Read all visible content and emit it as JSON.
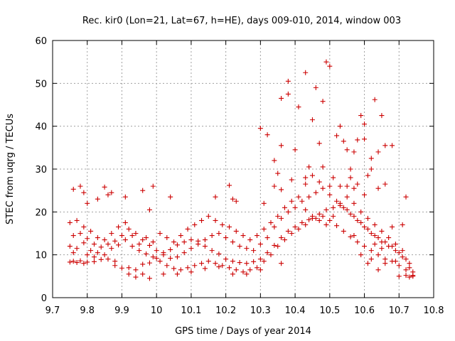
{
  "chart_data": {
    "type": "scatter",
    "title": "Rec. kir0 (Lon=21, Lat=67, h=HE), days 009-010, 2014, window 003",
    "xlabel": "GPS time / Days of year 2014",
    "ylabel": "STEC from uqrg / TECUs",
    "xlim": [
      9.7,
      10.8
    ],
    "ylim": [
      0,
      60
    ],
    "x_ticks": [
      "9.7",
      "9.8",
      "9.9",
      "10",
      "10.1",
      "10.2",
      "10.3",
      "10.4",
      "10.5",
      "10.6",
      "10.7",
      "10.8"
    ],
    "y_ticks": [
      "0",
      "10",
      "20",
      "30",
      "40",
      "50",
      "60"
    ],
    "grid": true,
    "marker": "+",
    "color": "#cc0000",
    "series": [
      {
        "name": "",
        "points": [
          [
            9.75,
            8.3
          ],
          [
            9.76,
            8.5
          ],
          [
            9.77,
            8.2
          ],
          [
            9.78,
            8.6
          ],
          [
            9.79,
            8.0
          ],
          [
            9.8,
            8.3
          ],
          [
            9.82,
            8.4
          ],
          [
            9.84,
            8.9
          ],
          [
            9.86,
            9.0
          ],
          [
            9.88,
            7.5
          ],
          [
            9.9,
            6.9
          ],
          [
            9.92,
            7.0
          ],
          [
            9.94,
            6.5
          ],
          [
            9.96,
            7.8
          ],
          [
            9.98,
            8.1
          ],
          [
            10.0,
            9.2
          ],
          [
            10.02,
            10.5
          ],
          [
            10.04,
            11.2
          ],
          [
            10.06,
            12.3
          ],
          [
            10.08,
            13.0
          ],
          [
            10.1,
            13.5
          ],
          [
            10.12,
            13.2
          ],
          [
            10.14,
            12.0
          ],
          [
            10.16,
            11.0
          ],
          [
            10.18,
            10.2
          ],
          [
            10.2,
            9.0
          ],
          [
            10.22,
            8.5
          ],
          [
            10.24,
            8.2
          ],
          [
            10.26,
            8.0
          ],
          [
            10.28,
            8.4
          ],
          [
            10.3,
            9.0
          ],
          [
            10.32,
            10.5
          ],
          [
            10.34,
            12.2
          ],
          [
            10.36,
            14.0
          ],
          [
            10.38,
            15.5
          ],
          [
            10.4,
            16.5
          ],
          [
            10.42,
            17.5
          ],
          [
            10.44,
            18.2
          ],
          [
            10.46,
            18.5
          ],
          [
            10.48,
            19.0
          ],
          [
            10.5,
            18.0
          ],
          [
            10.52,
            16.8
          ],
          [
            10.54,
            15.5
          ],
          [
            10.56,
            14.2
          ],
          [
            10.58,
            13.0
          ],
          [
            10.6,
            12.0
          ],
          [
            10.62,
            11.0
          ],
          [
            10.64,
            10.0
          ],
          [
            10.66,
            9.0
          ],
          [
            10.68,
            8.5
          ],
          [
            10.7,
            7.5
          ],
          [
            10.72,
            6.5
          ],
          [
            10.74,
            5.0
          ],
          [
            9.75,
            12.0
          ],
          [
            9.77,
            11.5
          ],
          [
            9.79,
            12.8
          ],
          [
            9.81,
            11.0
          ],
          [
            9.83,
            10.5
          ],
          [
            9.85,
            10.0
          ],
          [
            9.87,
            11.5
          ],
          [
            9.89,
            12.3
          ],
          [
            9.91,
            13.5
          ],
          [
            9.93,
            12.0
          ],
          [
            9.95,
            11.0
          ],
          [
            9.97,
            10.2
          ],
          [
            9.99,
            9.5
          ],
          [
            10.01,
            8.5
          ],
          [
            10.03,
            7.5
          ],
          [
            10.05,
            6.8
          ],
          [
            10.07,
            6.5
          ],
          [
            10.09,
            7.0
          ],
          [
            10.11,
            7.5
          ],
          [
            10.13,
            8.0
          ],
          [
            10.15,
            8.5
          ],
          [
            10.17,
            8.0
          ],
          [
            10.19,
            7.5
          ],
          [
            10.21,
            7.0
          ],
          [
            10.23,
            6.5
          ],
          [
            10.25,
            6.0
          ],
          [
            10.27,
            6.5
          ],
          [
            10.29,
            7.0
          ],
          [
            10.31,
            8.5
          ],
          [
            10.33,
            10.0
          ],
          [
            10.35,
            12.0
          ],
          [
            10.37,
            13.5
          ],
          [
            10.39,
            15.0
          ],
          [
            10.41,
            16.0
          ],
          [
            10.43,
            17.0
          ],
          [
            10.45,
            18.5
          ],
          [
            10.47,
            19.5
          ],
          [
            10.49,
            20.5
          ],
          [
            10.51,
            21.0
          ],
          [
            10.53,
            21.5
          ],
          [
            10.55,
            20.5
          ],
          [
            10.57,
            19.0
          ],
          [
            10.59,
            17.5
          ],
          [
            10.61,
            16.0
          ],
          [
            10.63,
            14.5
          ],
          [
            10.65,
            13.0
          ],
          [
            10.67,
            12.0
          ],
          [
            10.69,
            11.0
          ],
          [
            10.71,
            9.5
          ],
          [
            10.73,
            7.0
          ],
          [
            9.76,
            14.5
          ],
          [
            9.78,
            15.0
          ],
          [
            9.8,
            13.8
          ],
          [
            9.82,
            12.5
          ],
          [
            9.84,
            11.8
          ],
          [
            9.86,
            12.5
          ],
          [
            9.88,
            13.2
          ],
          [
            9.9,
            14.5
          ],
          [
            9.92,
            16.0
          ],
          [
            9.94,
            15.0
          ],
          [
            9.96,
            13.5
          ],
          [
            9.98,
            12.2
          ],
          [
            10.0,
            11.0
          ],
          [
            10.02,
            10.0
          ],
          [
            10.04,
            9.2
          ],
          [
            10.06,
            9.5
          ],
          [
            10.08,
            10.5
          ],
          [
            10.1,
            11.5
          ],
          [
            10.12,
            12.5
          ],
          [
            10.14,
            13.5
          ],
          [
            10.16,
            14.5
          ],
          [
            10.18,
            15.0
          ],
          [
            10.2,
            14.0
          ],
          [
            10.22,
            13.0
          ],
          [
            10.24,
            12.0
          ],
          [
            10.26,
            11.5
          ],
          [
            10.28,
            11.0
          ],
          [
            10.3,
            12.5
          ],
          [
            10.32,
            14.0
          ],
          [
            10.34,
            16.5
          ],
          [
            10.36,
            18.5
          ],
          [
            10.38,
            20.0
          ],
          [
            10.4,
            21.0
          ],
          [
            10.42,
            22.5
          ],
          [
            10.44,
            23.5
          ],
          [
            10.46,
            24.5
          ],
          [
            10.48,
            25.5
          ],
          [
            10.5,
            24.0
          ],
          [
            10.52,
            22.5
          ],
          [
            10.54,
            21.0
          ],
          [
            10.56,
            19.5
          ],
          [
            10.58,
            18.0
          ],
          [
            10.6,
            16.5
          ],
          [
            10.62,
            15.0
          ],
          [
            10.64,
            14.0
          ],
          [
            10.66,
            13.0
          ],
          [
            10.68,
            12.0
          ],
          [
            10.7,
            10.5
          ],
          [
            10.72,
            9.0
          ],
          [
            10.74,
            6.0
          ],
          [
            9.75,
            17.5
          ],
          [
            9.77,
            18.0
          ],
          [
            9.79,
            16.5
          ],
          [
            9.81,
            15.5
          ],
          [
            9.83,
            14.0
          ],
          [
            9.85,
            13.5
          ],
          [
            9.87,
            15.0
          ],
          [
            9.89,
            16.5
          ],
          [
            9.91,
            17.5
          ],
          [
            9.93,
            14.5
          ],
          [
            9.95,
            12.5
          ],
          [
            9.97,
            14.0
          ],
          [
            9.99,
            13.0
          ],
          [
            10.01,
            15.0
          ],
          [
            10.03,
            14.0
          ],
          [
            10.05,
            13.0
          ],
          [
            10.07,
            14.5
          ],
          [
            10.09,
            16.0
          ],
          [
            10.11,
            17.0
          ],
          [
            10.13,
            18.0
          ],
          [
            10.15,
            19.0
          ],
          [
            10.17,
            18.0
          ],
          [
            10.19,
            17.0
          ],
          [
            10.21,
            16.5
          ],
          [
            10.23,
            15.5
          ],
          [
            10.25,
            14.5
          ],
          [
            10.27,
            13.5
          ],
          [
            10.29,
            14.5
          ],
          [
            10.31,
            16.0
          ],
          [
            10.33,
            17.5
          ],
          [
            10.35,
            19.0
          ],
          [
            10.37,
            21.0
          ],
          [
            10.39,
            22.5
          ],
          [
            10.41,
            23.5
          ],
          [
            10.43,
            20.5
          ],
          [
            10.45,
            19.0
          ],
          [
            10.47,
            18.0
          ],
          [
            10.49,
            17.0
          ],
          [
            10.51,
            19.0
          ],
          [
            10.53,
            22.0
          ],
          [
            10.55,
            23.5
          ],
          [
            10.57,
            22.0
          ],
          [
            10.59,
            20.0
          ],
          [
            10.61,
            18.5
          ],
          [
            10.63,
            17.0
          ],
          [
            10.65,
            15.5
          ],
          [
            10.67,
            14.0
          ],
          [
            10.69,
            12.5
          ],
          [
            10.71,
            11.0
          ],
          [
            10.73,
            8.0
          ],
          [
            9.76,
            25.3
          ],
          [
            9.78,
            26.0
          ],
          [
            9.79,
            24.5
          ],
          [
            9.8,
            22.0
          ],
          [
            9.83,
            23.0
          ],
          [
            9.85,
            25.8
          ],
          [
            9.86,
            24.0
          ],
          [
            9.87,
            24.5
          ],
          [
            9.91,
            23.5
          ],
          [
            9.96,
            25.0
          ],
          [
            9.98,
            20.5
          ],
          [
            9.99,
            26.0
          ],
          [
            10.04,
            23.5
          ],
          [
            10.17,
            23.5
          ],
          [
            10.21,
            26.2
          ],
          [
            10.22,
            23.0
          ],
          [
            10.23,
            22.5
          ],
          [
            10.31,
            22.0
          ],
          [
            10.34,
            26.0
          ],
          [
            10.36,
            25.2
          ],
          [
            10.39,
            27.5
          ],
          [
            10.43,
            26.5
          ],
          [
            10.45,
            28.5
          ],
          [
            10.47,
            27.0
          ],
          [
            10.5,
            26.0
          ],
          [
            10.55,
            26.0
          ],
          [
            10.57,
            25.5
          ],
          [
            10.6,
            24.0
          ],
          [
            10.64,
            25.5
          ],
          [
            10.66,
            26.5
          ],
          [
            10.72,
            23.5
          ],
          [
            10.71,
            17.0
          ],
          [
            10.68,
            16.5
          ],
          [
            10.3,
            39.5
          ],
          [
            10.32,
            38.0
          ],
          [
            10.34,
            32.0
          ],
          [
            10.36,
            35.5
          ],
          [
            10.38,
            47.5
          ],
          [
            10.36,
            46.5
          ],
          [
            10.38,
            50.5
          ],
          [
            10.4,
            34.5
          ],
          [
            10.41,
            44.5
          ],
          [
            10.43,
            52.5
          ],
          [
            10.45,
            41.5
          ],
          [
            10.46,
            49.0
          ],
          [
            10.47,
            36.0
          ],
          [
            10.48,
            45.8
          ],
          [
            10.49,
            55.0
          ],
          [
            10.5,
            54.0
          ],
          [
            10.51,
            28.0
          ],
          [
            10.52,
            37.8
          ],
          [
            10.53,
            40.0
          ],
          [
            10.54,
            36.5
          ],
          [
            10.55,
            34.5
          ],
          [
            10.56,
            30.0
          ],
          [
            10.57,
            34.0
          ],
          [
            10.58,
            36.8
          ],
          [
            10.59,
            42.5
          ],
          [
            10.6,
            40.5
          ],
          [
            10.61,
            28.5
          ],
          [
            10.62,
            30.0
          ],
          [
            10.63,
            46.2
          ],
          [
            10.64,
            34.0
          ],
          [
            10.65,
            42.5
          ],
          [
            10.66,
            35.5
          ],
          [
            10.68,
            35.5
          ],
          [
            10.35,
            29.0
          ],
          [
            10.43,
            28.0
          ],
          [
            10.44,
            30.5
          ],
          [
            10.48,
            30.5
          ],
          [
            10.53,
            26.0
          ],
          [
            10.56,
            28.0
          ],
          [
            10.58,
            26.5
          ],
          [
            10.6,
            37.0
          ],
          [
            10.62,
            32.5
          ],
          [
            9.76,
            10.5
          ],
          [
            9.8,
            10.0
          ],
          [
            9.82,
            9.5
          ],
          [
            9.88,
            8.5
          ],
          [
            9.92,
            5.5
          ],
          [
            9.94,
            4.8
          ],
          [
            9.96,
            5.5
          ],
          [
            9.98,
            4.5
          ],
          [
            10.02,
            5.5
          ],
          [
            10.06,
            5.5
          ],
          [
            10.1,
            6.0
          ],
          [
            10.14,
            6.8
          ],
          [
            10.18,
            7.2
          ],
          [
            10.22,
            5.5
          ],
          [
            10.26,
            5.5
          ],
          [
            10.3,
            6.5
          ],
          [
            10.36,
            8.0
          ],
          [
            10.64,
            6.5
          ],
          [
            10.66,
            8.0
          ],
          [
            10.7,
            5.0
          ],
          [
            10.72,
            5.2
          ],
          [
            10.73,
            4.8
          ],
          [
            10.74,
            5.2
          ],
          [
            10.69,
            8.5
          ],
          [
            10.65,
            11.5
          ],
          [
            10.63,
            12.5
          ],
          [
            10.62,
            9.0
          ],
          [
            10.61,
            8.0
          ],
          [
            10.59,
            10.0
          ],
          [
            10.57,
            14.5
          ]
        ]
      }
    ]
  }
}
